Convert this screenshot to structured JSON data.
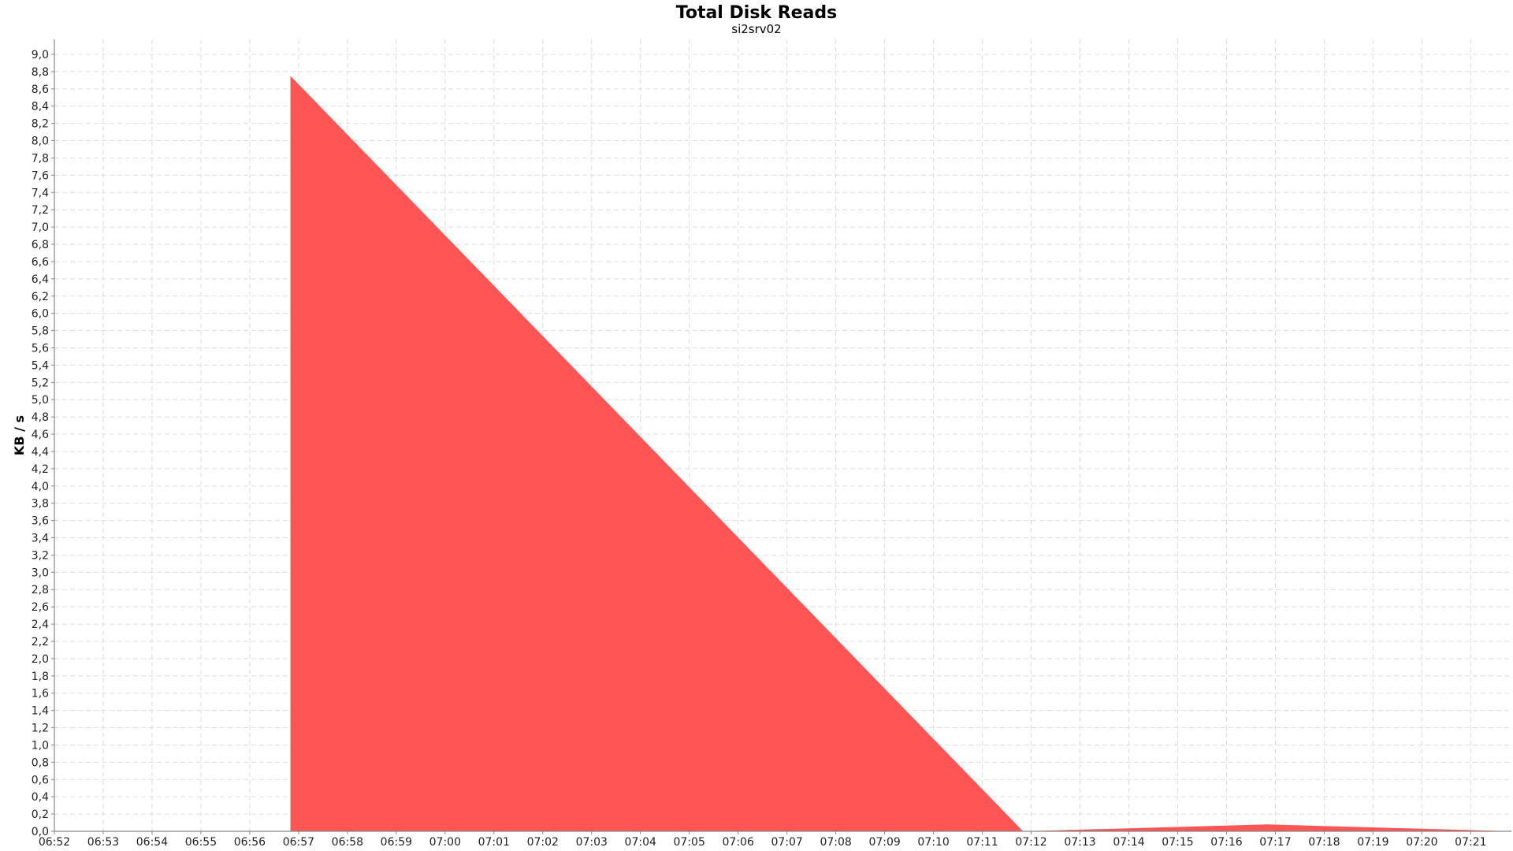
{
  "chart_data": {
    "type": "area",
    "title": "Total Disk Reads",
    "subtitle": "si2srv02",
    "xlabel": "",
    "ylabel": "KB / s",
    "ylim": [
      0,
      9.0
    ],
    "yticks": [
      "0,0",
      "0,2",
      "0,4",
      "0,6",
      "0,8",
      "1,0",
      "1,2",
      "1,4",
      "1,6",
      "1,8",
      "2,0",
      "2,2",
      "2,4",
      "2,6",
      "2,8",
      "3,0",
      "3,2",
      "3,4",
      "3,6",
      "3,8",
      "4,0",
      "4,2",
      "4,4",
      "4,6",
      "4,8",
      "5,0",
      "5,2",
      "5,4",
      "5,6",
      "5,8",
      "6,0",
      "6,2",
      "6,4",
      "6,6",
      "6,8",
      "7,0",
      "7,2",
      "7,4",
      "7,6",
      "7,8",
      "8,0",
      "8,2",
      "8,4",
      "8,6",
      "8,8",
      "9,0"
    ],
    "xticks": [
      "06:52",
      "06:53",
      "06:54",
      "06:55",
      "06:56",
      "06:57",
      "06:58",
      "06:59",
      "07:00",
      "07:01",
      "07:02",
      "07:03",
      "07:04",
      "07:05",
      "07:06",
      "07:07",
      "07:08",
      "07:09",
      "07:10",
      "07:11",
      "07:12",
      "07:13",
      "07:14",
      "07:15",
      "07:16",
      "07:17",
      "07:18",
      "07:19",
      "07:20",
      "07:21"
    ],
    "x_range": [
      "06:52",
      "07:21:50"
    ],
    "grid": true,
    "legend": "none",
    "series": [
      {
        "color": "#ff5555",
        "points": [
          {
            "x": "06:56:50",
            "y": 0.0
          },
          {
            "x": "06:56:50",
            "y": 8.75
          },
          {
            "x": "07:11:50",
            "y": 0.0
          },
          {
            "x": "07:16:50",
            "y": 0.08
          },
          {
            "x": "07:21:50",
            "y": 0.0
          }
        ]
      }
    ]
  }
}
